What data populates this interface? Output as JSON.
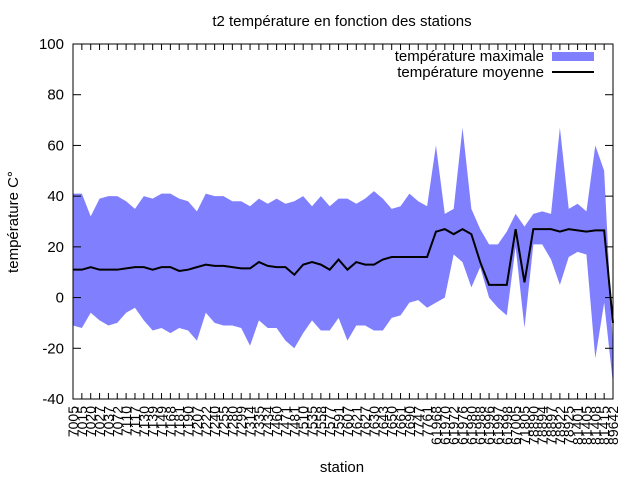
{
  "chart_data": {
    "type": "area",
    "title": "t2 température en fonction des stations",
    "xlabel": "station",
    "ylabel": "température C°",
    "ylim": [
      -40,
      100
    ],
    "yticks": [
      -40,
      -20,
      0,
      20,
      40,
      60,
      80,
      100
    ],
    "legend_position": "top-right",
    "grid": false,
    "categories": [
      "7005",
      "7015",
      "7020",
      "7027",
      "7037",
      "7072",
      "7110",
      "7117",
      "7130",
      "7139",
      "7149",
      "7168",
      "7181",
      "7190",
      "7207",
      "7222",
      "7240",
      "7255",
      "7280",
      "7299",
      "7314",
      "7335",
      "7434",
      "7460",
      "7471",
      "7481",
      "7510",
      "7535",
      "7558",
      "7577",
      "7591",
      "7607",
      "7621",
      "7627",
      "7630",
      "7643",
      "7650",
      "7661",
      "7690",
      "7747",
      "7761",
      "61968",
      "61970",
      "61972",
      "61976",
      "61980",
      "61988",
      "61996",
      "61997",
      "61998",
      "67005",
      "71805",
      "78890",
      "78894",
      "78897",
      "78922",
      "78925",
      "81401",
      "81405",
      "81408",
      "81415",
      "89642"
    ],
    "series": [
      {
        "name": "température maximale",
        "style": "band",
        "color": "#8080ff",
        "upper": [
          41,
          41,
          32,
          39,
          40,
          40,
          38,
          35,
          40,
          39,
          41,
          41,
          39,
          38,
          34,
          41,
          40,
          40,
          38,
          38,
          36,
          39,
          37,
          39,
          37,
          38,
          40,
          36,
          40,
          36,
          39,
          39,
          37,
          39,
          42,
          39,
          35,
          36,
          41,
          38,
          36,
          60,
          33,
          35,
          67,
          35,
          27,
          21,
          21,
          26,
          33,
          28,
          33,
          34,
          33,
          67,
          35,
          37,
          34,
          60,
          50,
          -20
        ],
        "lower": [
          -11,
          -12,
          -6,
          -9,
          -11,
          -10,
          -6,
          -4,
          -9,
          -13,
          -12,
          -14,
          -12,
          -13,
          -17,
          -6,
          -10,
          -11,
          -11,
          -12,
          -19,
          -9,
          -12,
          -12,
          -17,
          -20,
          -14,
          -9,
          -13,
          -13,
          -8,
          -17,
          -11,
          -11,
          -13,
          -13,
          -8,
          -7,
          -2,
          -1,
          -4,
          -2,
          0,
          17,
          14,
          4,
          12,
          0,
          -4,
          -7,
          20,
          -12,
          21,
          21,
          15,
          5,
          16,
          18,
          17,
          -24,
          -2,
          -34
        ]
      },
      {
        "name": "température moyenne",
        "style": "line",
        "color": "#000000",
        "values": [
          11,
          11,
          12,
          11,
          11,
          11,
          11.5,
          12,
          12,
          11,
          12,
          12,
          10.5,
          11,
          12,
          13,
          12.5,
          12.5,
          12,
          11.5,
          11.5,
          14,
          12.5,
          12,
          12,
          9,
          13,
          14,
          13,
          11,
          15,
          11,
          14,
          13,
          13,
          15,
          16,
          16,
          16,
          16,
          16,
          26,
          27,
          25,
          27,
          25,
          14,
          5,
          5,
          5,
          27,
          6,
          27,
          27,
          27,
          26,
          27,
          26.5,
          26,
          26.5,
          26.5,
          -10
        ]
      }
    ]
  }
}
